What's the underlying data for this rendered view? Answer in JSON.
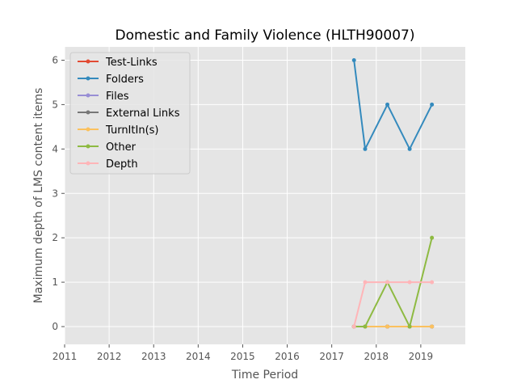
{
  "chart_data": {
    "type": "line",
    "title": "Domestic and Family Violence (HLTH90007)",
    "xlabel": "Time Period",
    "ylabel": "Maximum depth of LMS content items",
    "xlim": [
      2011,
      2020
    ],
    "ylim": [
      -0.4,
      6.3
    ],
    "xticks": [
      2011,
      2012,
      2013,
      2014,
      2015,
      2016,
      2017,
      2018,
      2019
    ],
    "yticks": [
      0,
      1,
      2,
      3,
      4,
      5,
      6
    ],
    "grid": true,
    "legend_position": "top-left",
    "x": [
      2017.5,
      2017.75,
      2018.25,
      2018.75,
      2019.25
    ],
    "series": [
      {
        "name": "Test-Links",
        "color": "#E24A33",
        "values": [
          0,
          0,
          0,
          0,
          0
        ]
      },
      {
        "name": "Folders",
        "color": "#348ABD",
        "values": [
          6,
          4,
          5,
          4,
          5
        ]
      },
      {
        "name": "Files",
        "color": "#988ED5",
        "values": [
          0,
          0,
          0,
          0,
          0
        ]
      },
      {
        "name": "External Links",
        "color": "#777777",
        "values": [
          0,
          0,
          0,
          0,
          0
        ]
      },
      {
        "name": "TurnItIn(s)",
        "color": "#FBC15E",
        "values": [
          0,
          0,
          0,
          0,
          0
        ]
      },
      {
        "name": "Other",
        "color": "#8EBA42",
        "values": [
          0,
          0,
          1,
          0,
          2
        ]
      },
      {
        "name": "Depth",
        "color": "#FFB5B8",
        "values": [
          0,
          1,
          1,
          1,
          1
        ]
      }
    ]
  }
}
